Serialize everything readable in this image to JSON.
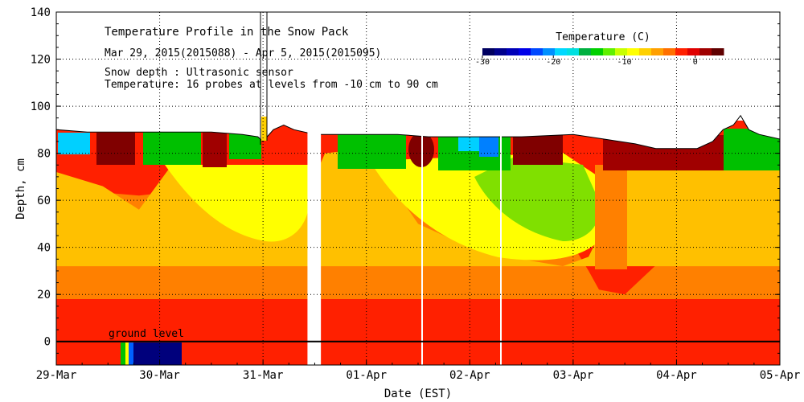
{
  "chart_data": {
    "type": "heatmap",
    "title": "Temperature Profile in the Snow Pack",
    "subtitle": "Mar 29, 2015(2015088) - Apr  5, 2015(2015095)",
    "annotation_lines": [
      "Snow depth : Ultrasonic sensor",
      "Temperature: 16 probes at levels from -10 cm to 90 cm"
    ],
    "ground_label": "ground level",
    "xlabel": "Date (EST)",
    "ylabel": "Depth, cm",
    "x_ticks": [
      "29-Mar",
      "30-Mar",
      "31-Mar",
      "01-Apr",
      "02-Apr",
      "03-Apr",
      "04-Apr",
      "05-Apr"
    ],
    "x_range_days": [
      0,
      7
    ],
    "y_ticks": [
      0,
      20,
      40,
      60,
      80,
      100,
      120,
      140
    ],
    "ylim": [
      -10,
      140
    ],
    "grid": true,
    "colorbar": {
      "title": "Temperature (C)",
      "range": [
        -30,
        4
      ],
      "tick_values": [
        -30,
        -20,
        -10,
        0
      ],
      "colors": [
        "#000060",
        "#00008c",
        "#0000b8",
        "#0000e8",
        "#0048ff",
        "#0090ff",
        "#00d8ff",
        "#00e0e0",
        "#00b040",
        "#00d000",
        "#60f000",
        "#c8ff00",
        "#ffff00",
        "#ffd000",
        "#ffa000",
        "#ff7000",
        "#ff2000",
        "#e00000",
        "#a00000",
        "#600000"
      ]
    },
    "snow_depth": [
      [
        0.0,
        90
      ],
      [
        0.3,
        89
      ],
      [
        0.6,
        89
      ],
      [
        0.9,
        89
      ],
      [
        1.2,
        89
      ],
      [
        1.5,
        89
      ],
      [
        1.8,
        88
      ],
      [
        1.95,
        87
      ],
      [
        2.0,
        85
      ],
      [
        2.1,
        90
      ],
      [
        2.2,
        92
      ],
      [
        2.3,
        90
      ],
      [
        2.5,
        88
      ],
      [
        2.8,
        88
      ],
      [
        3.0,
        88
      ],
      [
        3.3,
        88
      ],
      [
        3.6,
        87
      ],
      [
        4.0,
        87
      ],
      [
        4.5,
        87
      ],
      [
        5.0,
        88
      ],
      [
        5.3,
        86
      ],
      [
        5.6,
        84
      ],
      [
        5.8,
        82
      ],
      [
        6.0,
        82
      ],
      [
        6.2,
        82
      ],
      [
        6.35,
        85
      ],
      [
        6.45,
        90
      ],
      [
        6.55,
        92
      ],
      [
        6.62,
        96
      ],
      [
        6.7,
        90
      ],
      [
        6.8,
        88
      ],
      [
        7.0,
        86
      ]
    ],
    "data_gaps_days": [
      [
        2.43,
        2.56
      ]
    ],
    "temperature_layers_depth_cm": [
      {
        "temp_c": -1,
        "days": [
          0.0,
          0.8,
          1.2,
          1.9,
          2.4,
          2.6,
          3.0,
          3.5,
          4.0,
          4.5,
          4.9,
          5.15,
          5.25,
          5.5,
          7.0
        ],
        "top_cm": [
          65,
          62,
          64,
          60,
          60,
          80,
          80,
          70,
          58,
          52,
          48,
          30,
          22,
          20,
          82
        ]
      },
      {
        "temp_c": -3,
        "days": [
          0.0,
          0.45,
          0.8,
          1.1,
          1.5,
          1.9,
          2.4,
          2.6,
          3.0,
          3.5,
          4.0,
          4.5,
          4.9,
          5.15,
          5.25,
          5.5,
          7.0
        ],
        "top_cm": [
          72,
          66,
          56,
          74,
          58,
          60,
          60,
          80,
          82,
          50,
          40,
          35,
          32,
          36,
          45,
          82,
          82
        ]
      }
    ]
  }
}
